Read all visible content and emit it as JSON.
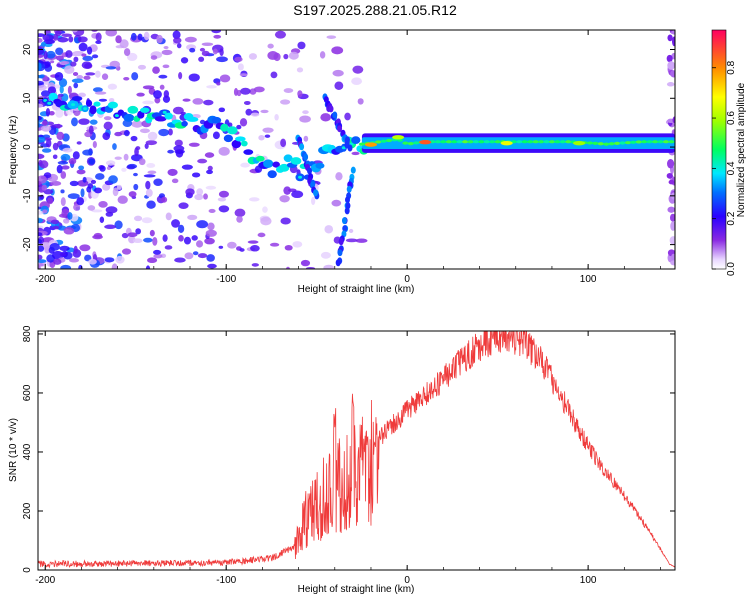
{
  "title": "S197.2025.288.21.05.R12",
  "chart_data": [
    {
      "type": "heatmap",
      "xlabel": "Height of straight line (km)",
      "ylabel": "Frequency (Hz)",
      "xlim": [
        -204,
        148
      ],
      "ylim": [
        -25,
        24
      ],
      "xticks": [
        -200,
        -100,
        0,
        100
      ],
      "yticks": [
        -20,
        -10,
        0,
        10,
        20
      ],
      "colorbar": {
        "label": "Normalized spectral amplitude",
        "range": [
          0,
          0.95
        ],
        "ticks": [
          0.0,
          0.2,
          0.4,
          0.6,
          0.8
        ],
        "tick_labels": [
          "0.0",
          "0.2",
          "0.4",
          "0.6",
          "0.8"
        ]
      },
      "ridge": [
        [
          -200,
          10
        ],
        [
          -180,
          9
        ],
        [
          -160,
          7
        ],
        [
          -140,
          6
        ],
        [
          -120,
          5
        ],
        [
          -105,
          4
        ],
        [
          -95,
          2
        ],
        [
          -85,
          -2
        ],
        [
          -75,
          -5
        ],
        [
          -65,
          -3
        ],
        [
          -55,
          -6
        ],
        [
          -45,
          -1
        ],
        [
          -35,
          0
        ],
        [
          -25,
          0
        ],
        [
          -15,
          1
        ],
        [
          -5,
          2
        ],
        [
          0,
          0
        ],
        [
          10,
          1
        ],
        [
          30,
          1
        ],
        [
          50,
          1
        ],
        [
          70,
          1
        ],
        [
          90,
          1
        ],
        [
          110,
          0
        ],
        [
          130,
          1
        ],
        [
          148,
          1
        ]
      ],
      "streaks": [
        {
          "from": [
            -30,
            -5
          ],
          "to": [
            -38,
            -24
          ]
        },
        {
          "from": [
            -45,
            10
          ],
          "to": [
            -32,
            0
          ]
        },
        {
          "from": [
            -60,
            2
          ],
          "to": [
            -50,
            -10
          ]
        }
      ]
    },
    {
      "type": "line",
      "xlabel": "Height of straight line (km)",
      "ylabel": "SNR (10 * v/v)",
      "xlim": [
        -204,
        148
      ],
      "ylim": [
        0,
        810
      ],
      "xticks": [
        -200,
        -100,
        0,
        100
      ],
      "yticks": [
        0,
        200,
        400,
        600,
        800
      ],
      "color": "#ef3b3b",
      "envelope": [
        [
          -204,
          20
        ],
        [
          -150,
          22
        ],
        [
          -100,
          25
        ],
        [
          -75,
          40
        ],
        [
          -62,
          80
        ],
        [
          -55,
          220
        ],
        [
          -45,
          300
        ],
        [
          -35,
          330
        ],
        [
          -28,
          360
        ],
        [
          -20,
          420
        ],
        [
          -10,
          480
        ],
        [
          0,
          540
        ],
        [
          10,
          590
        ],
        [
          20,
          650
        ],
        [
          30,
          710
        ],
        [
          40,
          760
        ],
        [
          50,
          785
        ],
        [
          55,
          790
        ],
        [
          65,
          770
        ],
        [
          75,
          700
        ],
        [
          85,
          590
        ],
        [
          95,
          470
        ],
        [
          105,
          370
        ],
        [
          115,
          290
        ],
        [
          125,
          210
        ],
        [
          135,
          120
        ],
        [
          145,
          20
        ],
        [
          148,
          10
        ]
      ],
      "spikes": [
        [
          -40,
          560
        ],
        [
          -30,
          600
        ],
        [
          -22,
          480
        ],
        [
          -18,
          450
        ],
        [
          -10,
          500
        ]
      ]
    }
  ]
}
